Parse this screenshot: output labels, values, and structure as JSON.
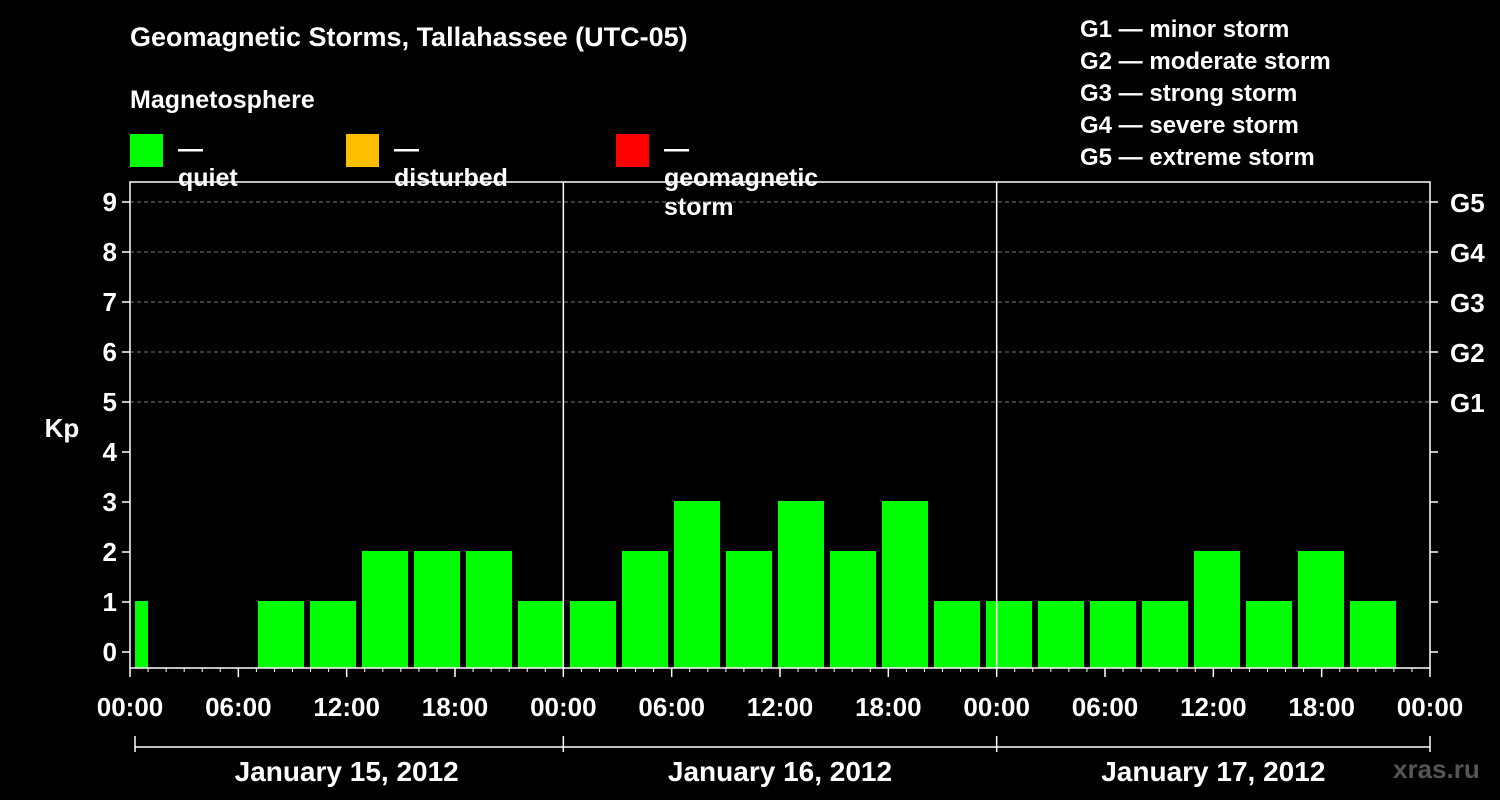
{
  "header": {
    "title": "Geomagnetic Storms, Tallahassee (UTC-05)",
    "subtitle": "Magnetosphere"
  },
  "legend": [
    {
      "label": "— quiet",
      "color": "#00ff00"
    },
    {
      "label": "— disturbed",
      "color": "#ffbf00"
    },
    {
      "label": "— geomagnetic storm",
      "color": "#ff0000"
    }
  ],
  "storm_legend": [
    "G1 — minor storm",
    "G2 — moderate storm",
    "G3 — strong storm",
    "G4 — severe storm",
    "G5 — extreme storm"
  ],
  "watermark": "xras.ru",
  "chart_data": {
    "type": "bar",
    "ylabel": "Kp",
    "ylim": [
      0,
      9
    ],
    "yticks": [
      "0",
      "1",
      "2",
      "3",
      "4",
      "5",
      "6",
      "7",
      "8",
      "9"
    ],
    "right_ticks": [
      {
        "kp": 5,
        "label": "G1"
      },
      {
        "kp": 6,
        "label": "G2"
      },
      {
        "kp": 7,
        "label": "G3"
      },
      {
        "kp": 8,
        "label": "G4"
      },
      {
        "kp": 9,
        "label": "G5"
      }
    ],
    "xtick_labels": [
      "00:00",
      "06:00",
      "12:00",
      "18:00",
      "00:00",
      "06:00",
      "12:00",
      "18:00",
      "00:00",
      "06:00",
      "12:00",
      "18:00",
      "00:00"
    ],
    "days": [
      "January 15, 2012",
      "January 16, 2012",
      "January 17, 2012"
    ],
    "interval_hours": 3,
    "grid": "dashed horizontal at Kp 5-9",
    "values": [
      1,
      0,
      0,
      1,
      1,
      2,
      2,
      2,
      1,
      1,
      2,
      3,
      2,
      3,
      2,
      3,
      1,
      1,
      1,
      1,
      1,
      2,
      1,
      2,
      1
    ],
    "colors": {
      "quiet": "#00ff00",
      "disturbed": "#ffbf00",
      "storm": "#ff0000"
    }
  }
}
